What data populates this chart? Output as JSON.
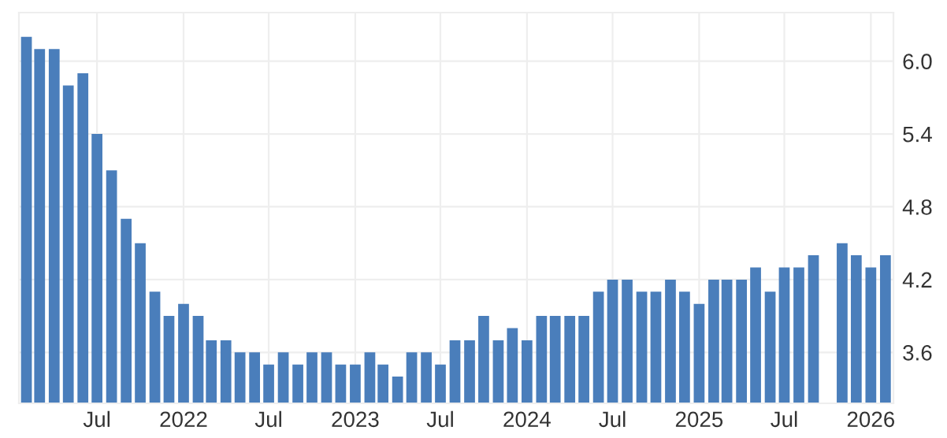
{
  "chart_data": {
    "type": "bar",
    "color": "#4a7ebb",
    "x": [
      "2021-02",
      "2021-03",
      "2021-04",
      "2021-05",
      "2021-06",
      "2021-07",
      "2021-08",
      "2021-09",
      "2021-10",
      "2021-11",
      "2021-12",
      "2022-01",
      "2022-02",
      "2022-03",
      "2022-04",
      "2022-05",
      "2022-06",
      "2022-07",
      "2022-08",
      "2022-09",
      "2022-10",
      "2022-11",
      "2022-12",
      "2023-01",
      "2023-02",
      "2023-03",
      "2023-04",
      "2023-05",
      "2023-06",
      "2023-07",
      "2023-08",
      "2023-09",
      "2023-10",
      "2023-11",
      "2023-12",
      "2024-01",
      "2024-02",
      "2024-03",
      "2024-04",
      "2024-05",
      "2024-06",
      "2024-07",
      "2024-08",
      "2024-09",
      "2024-10",
      "2024-11",
      "2024-12",
      "2025-01",
      "2025-02",
      "2025-03",
      "2025-04",
      "2025-05",
      "2025-06",
      "2025-07",
      "2025-08",
      "2025-09",
      "2025-10",
      "2025-11",
      "2025-12",
      "2026-01",
      "2026-02"
    ],
    "values": [
      6.2,
      6.1,
      6.1,
      5.8,
      5.9,
      5.4,
      5.1,
      4.7,
      4.5,
      4.1,
      3.9,
      4.0,
      3.9,
      3.7,
      3.7,
      3.6,
      3.6,
      3.5,
      3.6,
      3.5,
      3.6,
      3.6,
      3.5,
      3.5,
      3.6,
      3.5,
      3.4,
      3.6,
      3.6,
      3.5,
      3.7,
      3.7,
      3.9,
      3.7,
      3.8,
      3.7,
      3.9,
      3.9,
      3.9,
      3.9,
      4.1,
      4.2,
      4.2,
      4.1,
      4.1,
      4.2,
      4.1,
      4.0,
      4.2,
      4.2,
      4.2,
      4.3,
      4.1,
      4.3,
      4.3,
      4.4,
      null,
      4.5,
      4.4,
      4.3,
      4.4
    ],
    "xlim": [
      "2021-01-16",
      "2026-02-18"
    ],
    "xticks": [
      {
        "value": "2021-07",
        "label": "Jul"
      },
      {
        "value": "2022-01",
        "label": "2022"
      },
      {
        "value": "2022-07",
        "label": "Jul"
      },
      {
        "value": "2023-01",
        "label": "2023"
      },
      {
        "value": "2023-07",
        "label": "Jul"
      },
      {
        "value": "2024-01",
        "label": "2024"
      },
      {
        "value": "2024-07",
        "label": "Jul"
      },
      {
        "value": "2025-01",
        "label": "2025"
      },
      {
        "value": "2025-07",
        "label": "Jul"
      },
      {
        "value": "2026-01",
        "label": "2026"
      }
    ],
    "ylim": [
      3.18,
      6.4
    ],
    "yticks": [
      {
        "value": 3.6,
        "label": "3.6"
      },
      {
        "value": 4.2,
        "label": "4.2"
      },
      {
        "value": 4.8,
        "label": "4.8"
      },
      {
        "value": 5.4,
        "label": "5.4"
      },
      {
        "value": 6.0,
        "label": "6.0"
      }
    ],
    "grid": true
  }
}
